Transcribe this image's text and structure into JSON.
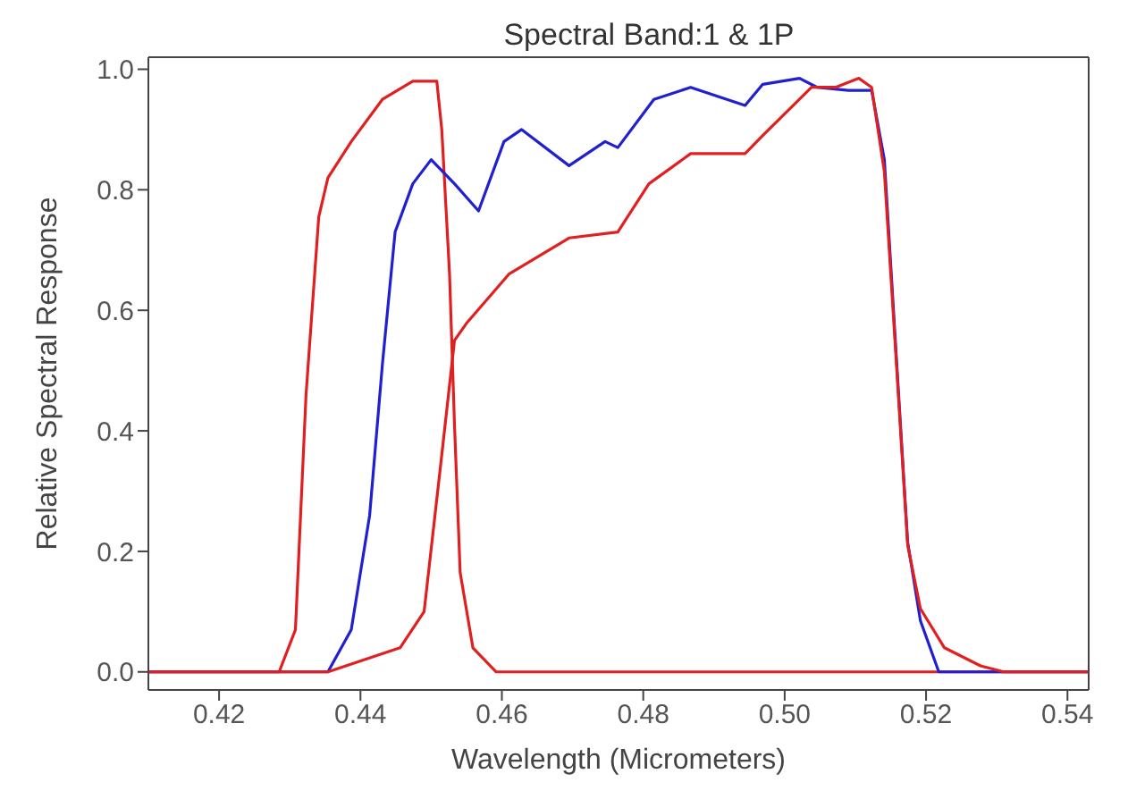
{
  "chart_data": {
    "type": "line",
    "title": "Spectral Band:1 & 1P",
    "xlabel": "Wavelength (Micrometers)",
    "ylabel": "Relative Spectral Response",
    "xlim": [
      0.41,
      0.543
    ],
    "ylim": [
      -0.03,
      1.02
    ],
    "xticks": [
      0.42,
      0.44,
      0.46,
      0.48,
      {
        "value": 0.5,
        "label": "0.50"
      },
      0.52,
      0.54
    ],
    "yticks": [
      {
        "value": 0,
        "label": "0.0"
      },
      {
        "value": 0.2,
        "label": "0.2"
      },
      {
        "value": 0.4,
        "label": "0.4"
      },
      {
        "value": 0.6,
        "label": "0.6"
      },
      {
        "value": 0.8,
        "label": "0.8"
      },
      {
        "value": 1,
        "label": "1.0"
      }
    ],
    "marker": "none",
    "line_style": "solid",
    "series": [
      {
        "color": "#e02020",
        "x": [
          0.41,
          0.4285,
          0.4308,
          0.4323,
          0.4341,
          0.4354,
          0.4387,
          0.4431,
          0.4474,
          0.4508,
          0.4515,
          0.4526,
          0.4533,
          0.4541,
          0.4559,
          0.4592,
          0.543
        ],
        "values": [
          0,
          0,
          0.07,
          0.46,
          0.755,
          0.82,
          0.88,
          0.95,
          0.98,
          0.98,
          0.9,
          0.66,
          0.41,
          0.165,
          0.04,
          0,
          0
        ]
      },
      {
        "color": "#2020d0",
        "x": [
          0.41,
          0.4285,
          0.4354,
          0.4387,
          0.4413,
          0.4431,
          0.4449,
          0.4474,
          0.45,
          0.4533,
          0.4567,
          0.4603,
          0.4628,
          0.4695,
          0.4746,
          0.4764,
          0.4815,
          0.4867,
          0.4944,
          0.4969,
          0.5021,
          0.5046,
          0.509,
          0.5123,
          0.5141,
          0.5156,
          0.5174,
          0.5192,
          0.5218,
          0.543
        ],
        "values": [
          0,
          0,
          0,
          0.07,
          0.26,
          0.51,
          0.73,
          0.81,
          0.85,
          0.81,
          0.765,
          0.88,
          0.9,
          0.84,
          0.88,
          0.87,
          0.95,
          0.97,
          0.94,
          0.975,
          0.985,
          0.97,
          0.965,
          0.965,
          0.85,
          0.56,
          0.215,
          0.085,
          0,
          0
        ]
      },
      {
        "color": "#e02020",
        "x": [
          0.41,
          0.4354,
          0.4456,
          0.449,
          0.4515,
          0.4533,
          0.4551,
          0.461,
          0.4695,
          0.4764,
          0.4808,
          0.4867,
          0.4944,
          0.4969,
          0.5038,
          0.5072,
          0.5105,
          0.5123,
          0.5141,
          0.5156,
          0.5174,
          0.5192,
          0.5226,
          0.5277,
          0.531,
          0.543
        ],
        "values": [
          0,
          0,
          0.04,
          0.1,
          0.36,
          0.55,
          0.58,
          0.66,
          0.72,
          0.73,
          0.81,
          0.86,
          0.86,
          0.89,
          0.97,
          0.97,
          0.985,
          0.97,
          0.83,
          0.55,
          0.21,
          0.105,
          0.04,
          0.01,
          0,
          0
        ]
      }
    ]
  }
}
